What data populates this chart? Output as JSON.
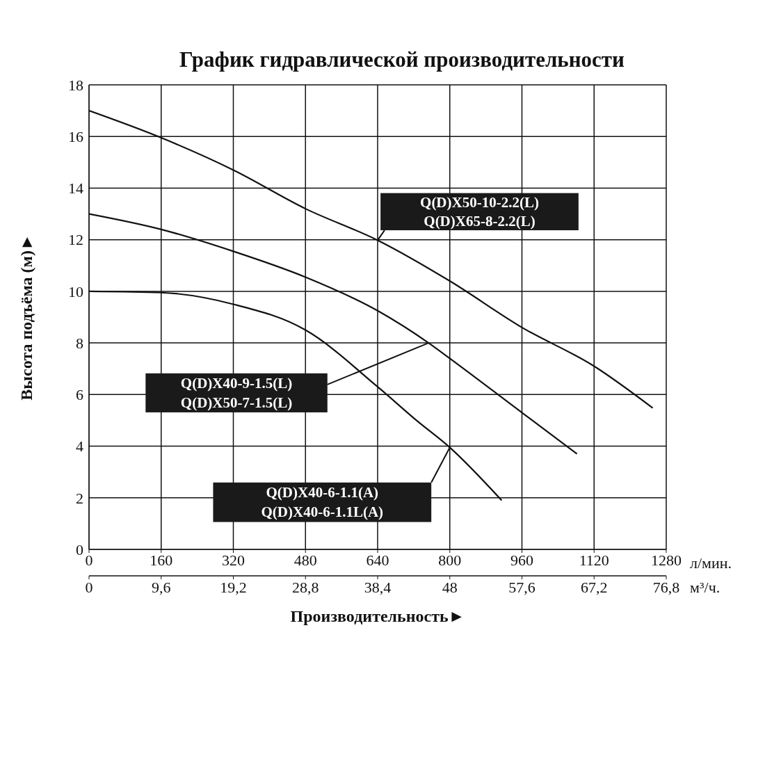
{
  "chart_data": {
    "type": "line",
    "title": "График гидравлической производительности",
    "xlabel": "Производительность►",
    "ylabel": "Высота подъёма (м)►",
    "xlim": [
      0,
      1280
    ],
    "xticks": [
      0,
      160,
      320,
      480,
      640,
      800,
      960,
      1120,
      1280
    ],
    "x2lim": [
      0,
      76.8
    ],
    "x2ticks": [
      0,
      {
        "value": 9.6,
        "label": "9,6"
      },
      {
        "value": 19.2,
        "label": "19,2"
      },
      {
        "value": 28.8,
        "label": "28,8"
      },
      {
        "value": 38.4,
        "label": "38,4"
      },
      48,
      {
        "value": 57.6,
        "label": "57,6"
      },
      {
        "value": 67.2,
        "label": "67,2"
      },
      {
        "value": 76.8,
        "label": "76,8"
      }
    ],
    "ylim": [
      0,
      18
    ],
    "yticks": [
      0,
      2,
      4,
      6,
      8,
      10,
      12,
      14,
      16,
      18
    ],
    "grid": true,
    "marker": "none",
    "line_style": "solid",
    "annotations": [
      "л/мин.",
      "м³/ч."
    ],
    "series": [
      {
        "name": "Q(D)X50-10-2.2(L)\nQ(D)X65-8-2.2(L)",
        "color": "#111111",
        "x": [
          0,
          160,
          320,
          480,
          640,
          800,
          960,
          1120,
          1250
        ],
        "values": [
          17.0,
          15.95,
          14.7,
          13.2,
          11.98,
          10.4,
          8.6,
          7.1,
          5.48
        ]
      },
      {
        "name": "Q(D)X40-9-1.5(L)\nQ(D)X50-7-1.5(L)",
        "color": "#111111",
        "x": [
          0,
          160,
          320,
          480,
          640,
          753,
          800,
          960,
          1082
        ],
        "values": [
          13.0,
          12.4,
          11.55,
          10.55,
          9.25,
          8.0,
          7.4,
          5.3,
          3.7
        ]
      },
      {
        "name": "Q(D)X40-6-1.1(A)\nQ(D)X40-6-1.1L(A)",
        "color": "#111111",
        "x": [
          0,
          160,
          320,
          480,
          640,
          726,
          800,
          915
        ],
        "values": [
          10.0,
          9.95,
          9.5,
          8.5,
          6.3,
          5.0,
          3.95,
          1.9
        ]
      }
    ]
  }
}
